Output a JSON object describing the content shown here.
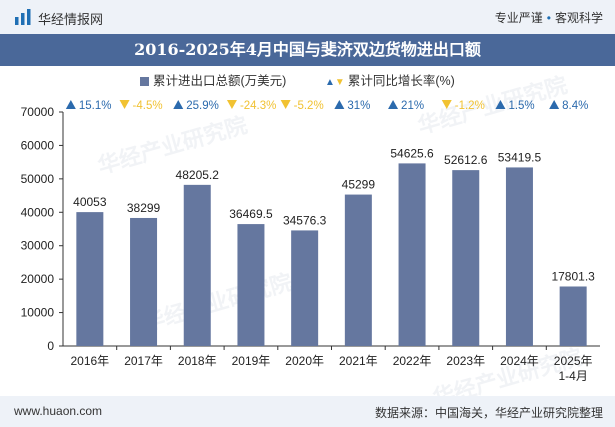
{
  "header": {
    "brand": "华经情报网",
    "slogan_left": "专业严谨",
    "slogan_separator": "•",
    "slogan_right": "客观科学"
  },
  "watermark": "华经产业研究院",
  "footer": {
    "url": "www.huaon.com",
    "source": "数据来源：中国海关，华经产业研究院整理"
  },
  "colors": {
    "bar": "#65779f",
    "growth_positive": "#2b6aad",
    "growth_negative": "#f1c232",
    "title_bg": "#4a6899"
  },
  "chart_data": {
    "type": "bar",
    "title": "2016-2025年4月中国与斐济双边货物进出口额",
    "legend_position": "top",
    "legend": {
      "series1": "累计进出口总额(万美元)",
      "series2": "累计同比增长率(%)"
    },
    "categories": [
      "2016年",
      "2017年",
      "2018年",
      "2019年",
      "2020年",
      "2021年",
      "2022年",
      "2023年",
      "2024年",
      "2025年\n1-4月"
    ],
    "series": [
      {
        "name": "累计进出口总额(万美元)",
        "values": [
          40053,
          38299,
          48205.2,
          36469.5,
          34576.3,
          45299,
          54625.6,
          52612.6,
          53419.5,
          17801.3
        ],
        "labels": [
          "40053",
          "38299",
          "48205.2",
          "36469.5",
          "34576.3",
          "45299",
          "54625.6",
          "52612.6",
          "53419.5",
          "17801.3"
        ]
      },
      {
        "name": "累计同比增长率(%)",
        "values": [
          15.1,
          -4.5,
          25.9,
          -24.3,
          -5.2,
          31,
          21,
          -1.2,
          1.5,
          8.4
        ],
        "labels": [
          "15.1%",
          "-4.5%",
          "25.9%",
          "-24.3%",
          "-5.2%",
          "31%",
          "21%",
          "-1.2%",
          "1.5%",
          "8.4%"
        ]
      }
    ],
    "ylim": [
      0,
      70000
    ],
    "yticks": [
      0,
      10000,
      20000,
      30000,
      40000,
      50000,
      60000,
      70000
    ],
    "ytick_labels": [
      "0",
      "10000",
      "20000",
      "30000",
      "40000",
      "50000",
      "60000",
      "70000"
    ],
    "grid": false
  }
}
